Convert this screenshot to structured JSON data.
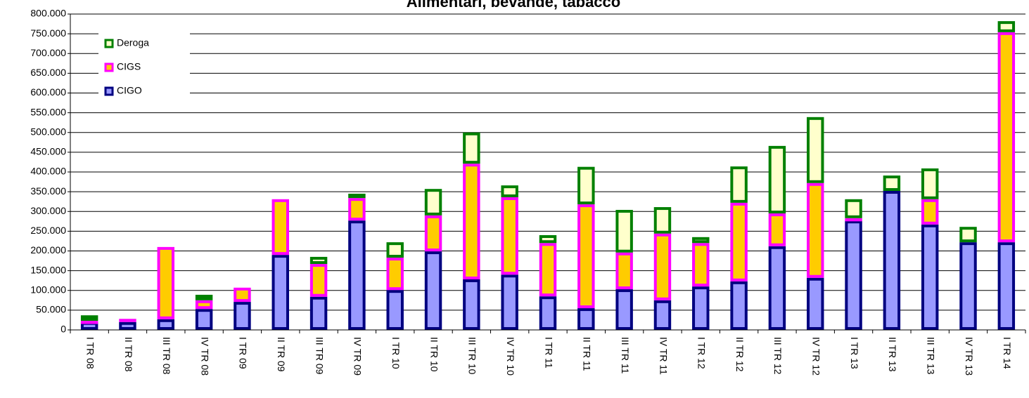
{
  "chart_data": {
    "type": "stacked_bar",
    "title": "Alimentari, bevande, tabacco",
    "categories": [
      "I TR 08",
      "II TR 08",
      "III TR 08",
      "IV TR 08",
      "I TR 09",
      "II TR 09",
      "III TR 09",
      "IV TR 09",
      "I TR 10",
      "II TR 10",
      "III TR 10",
      "IV TR 10",
      "I TR 11",
      "II TR 11",
      "III TR 11",
      "IV TR 11",
      "I TR 12",
      "II TR 12",
      "III TR 12",
      "IV TR 12",
      "I TR 13",
      "II TR 13",
      "III TR 13",
      "IV TR 13",
      "I TR 14"
    ],
    "series": [
      {
        "name": "CIGO",
        "color": "#9999ff",
        "edgecolor": "#000080",
        "values": [
          20000,
          20000,
          27000,
          53000,
          71000,
          190000,
          84000,
          277000,
          101000,
          199000,
          128000,
          140000,
          85000,
          55000,
          103000,
          75000,
          110000,
          123000,
          212000,
          132000,
          277000,
          352000,
          267000,
          222000,
          222000
        ]
      },
      {
        "name": "CIGS",
        "color": "#ffcc00",
        "edgecolor": "#ff00ff",
        "values": [
          3000,
          8000,
          183000,
          22000,
          36000,
          141000,
          83000,
          57000,
          82000,
          91000,
          293000,
          196000,
          135000,
          263000,
          93000,
          169000,
          110000,
          199000,
          83000,
          240000,
          6000,
          0,
          64000,
          0,
          532000
        ]
      },
      {
        "name": "Deroga",
        "color": "#ffffcc",
        "edgecolor": "#008000",
        "values": [
          14000,
          0,
          0,
          14000,
          0,
          0,
          18000,
          11000,
          39000,
          67000,
          79000,
          30000,
          20000,
          95000,
          108000,
          67000,
          15000,
          92000,
          171000,
          167000,
          48000,
          39000,
          78000,
          39000,
          28000
        ]
      }
    ],
    "ylim": [
      0,
      800000
    ],
    "yticks": [
      0,
      {
        "value": 50000,
        "label": "50.000"
      },
      {
        "value": 100000,
        "label": "100.000"
      },
      {
        "value": 150000,
        "label": "150.000"
      },
      {
        "value": 200000,
        "label": "200.000"
      },
      {
        "value": 250000,
        "label": "250.000"
      },
      {
        "value": 300000,
        "label": "300.000"
      },
      {
        "value": 350000,
        "label": "350.000"
      },
      {
        "value": 400000,
        "label": "400.000"
      },
      {
        "value": 450000,
        "label": "450.000"
      },
      {
        "value": 500000,
        "label": "500.000"
      },
      {
        "value": 550000,
        "label": "550.000"
      },
      {
        "value": 600000,
        "label": "600.000"
      },
      {
        "value": 650000,
        "label": "650.000"
      },
      {
        "value": 700000,
        "label": "700.000"
      },
      {
        "value": 750000,
        "label": "750.000"
      },
      {
        "value": 800000,
        "label": "800.000"
      }
    ],
    "grid": true,
    "legend": "upper left"
  }
}
